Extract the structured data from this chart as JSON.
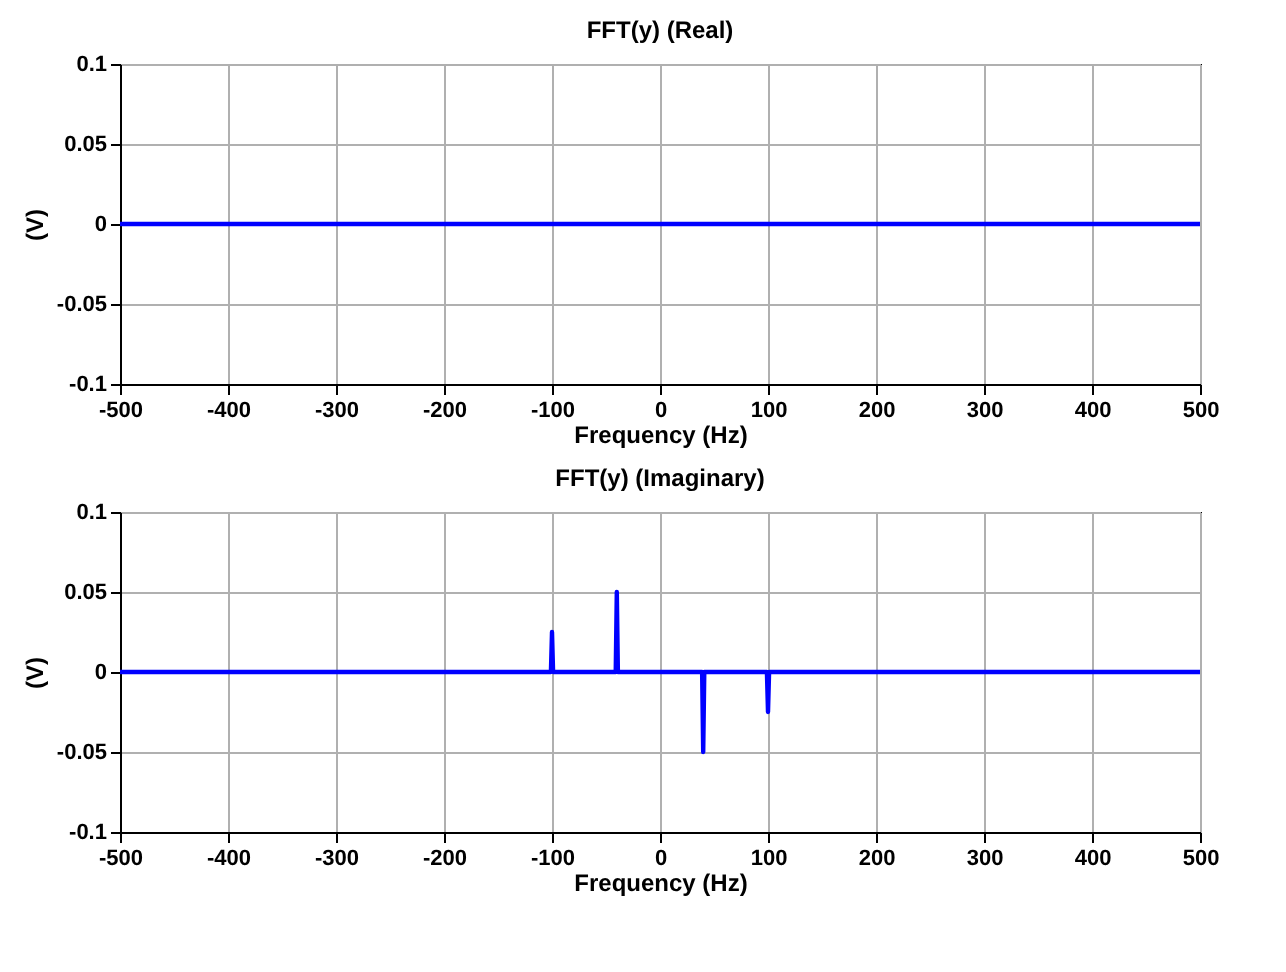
{
  "chart_data": [
    {
      "type": "line",
      "title": "FFT(y) (Real)",
      "xlabel": "Frequency (Hz)",
      "ylabel": "(V)",
      "x": [
        -500,
        500
      ],
      "series": [
        {
          "color": "#0000ff",
          "values": [
            0,
            0
          ]
        }
      ],
      "xlim": [
        -500,
        500
      ],
      "xticks": [
        -500,
        -400,
        -300,
        -200,
        -100,
        0,
        100,
        200,
        300,
        400,
        500
      ],
      "ylim": [
        -0.1,
        0.1
      ],
      "yticks": [
        -0.1,
        -0.05,
        0,
        0.05,
        0.1
      ],
      "grid": true,
      "marker": "none",
      "line_style": "solid"
    },
    {
      "type": "line",
      "title": "FFT(y) (Imaginary)",
      "xlabel": "Frequency (Hz)",
      "ylabel": "(V)",
      "x": [
        -500,
        -101,
        -100,
        -99,
        -41,
        -40,
        -39,
        39,
        40,
        41,
        99,
        100,
        101,
        500
      ],
      "series": [
        {
          "color": "#0000ff",
          "values": [
            0,
            0,
            0.025,
            0,
            0,
            0.05,
            0,
            0,
            -0.05,
            0,
            0,
            -0.025,
            0,
            0
          ]
        }
      ],
      "xlim": [
        -500,
        500
      ],
      "xticks": [
        -500,
        -400,
        -300,
        -200,
        -100,
        0,
        100,
        200,
        300,
        400,
        500
      ],
      "ylim": [
        -0.1,
        0.1
      ],
      "yticks": [
        -0.1,
        -0.05,
        0,
        0.05,
        0.1
      ],
      "grid": true,
      "marker": "none",
      "line_style": "solid"
    }
  ]
}
